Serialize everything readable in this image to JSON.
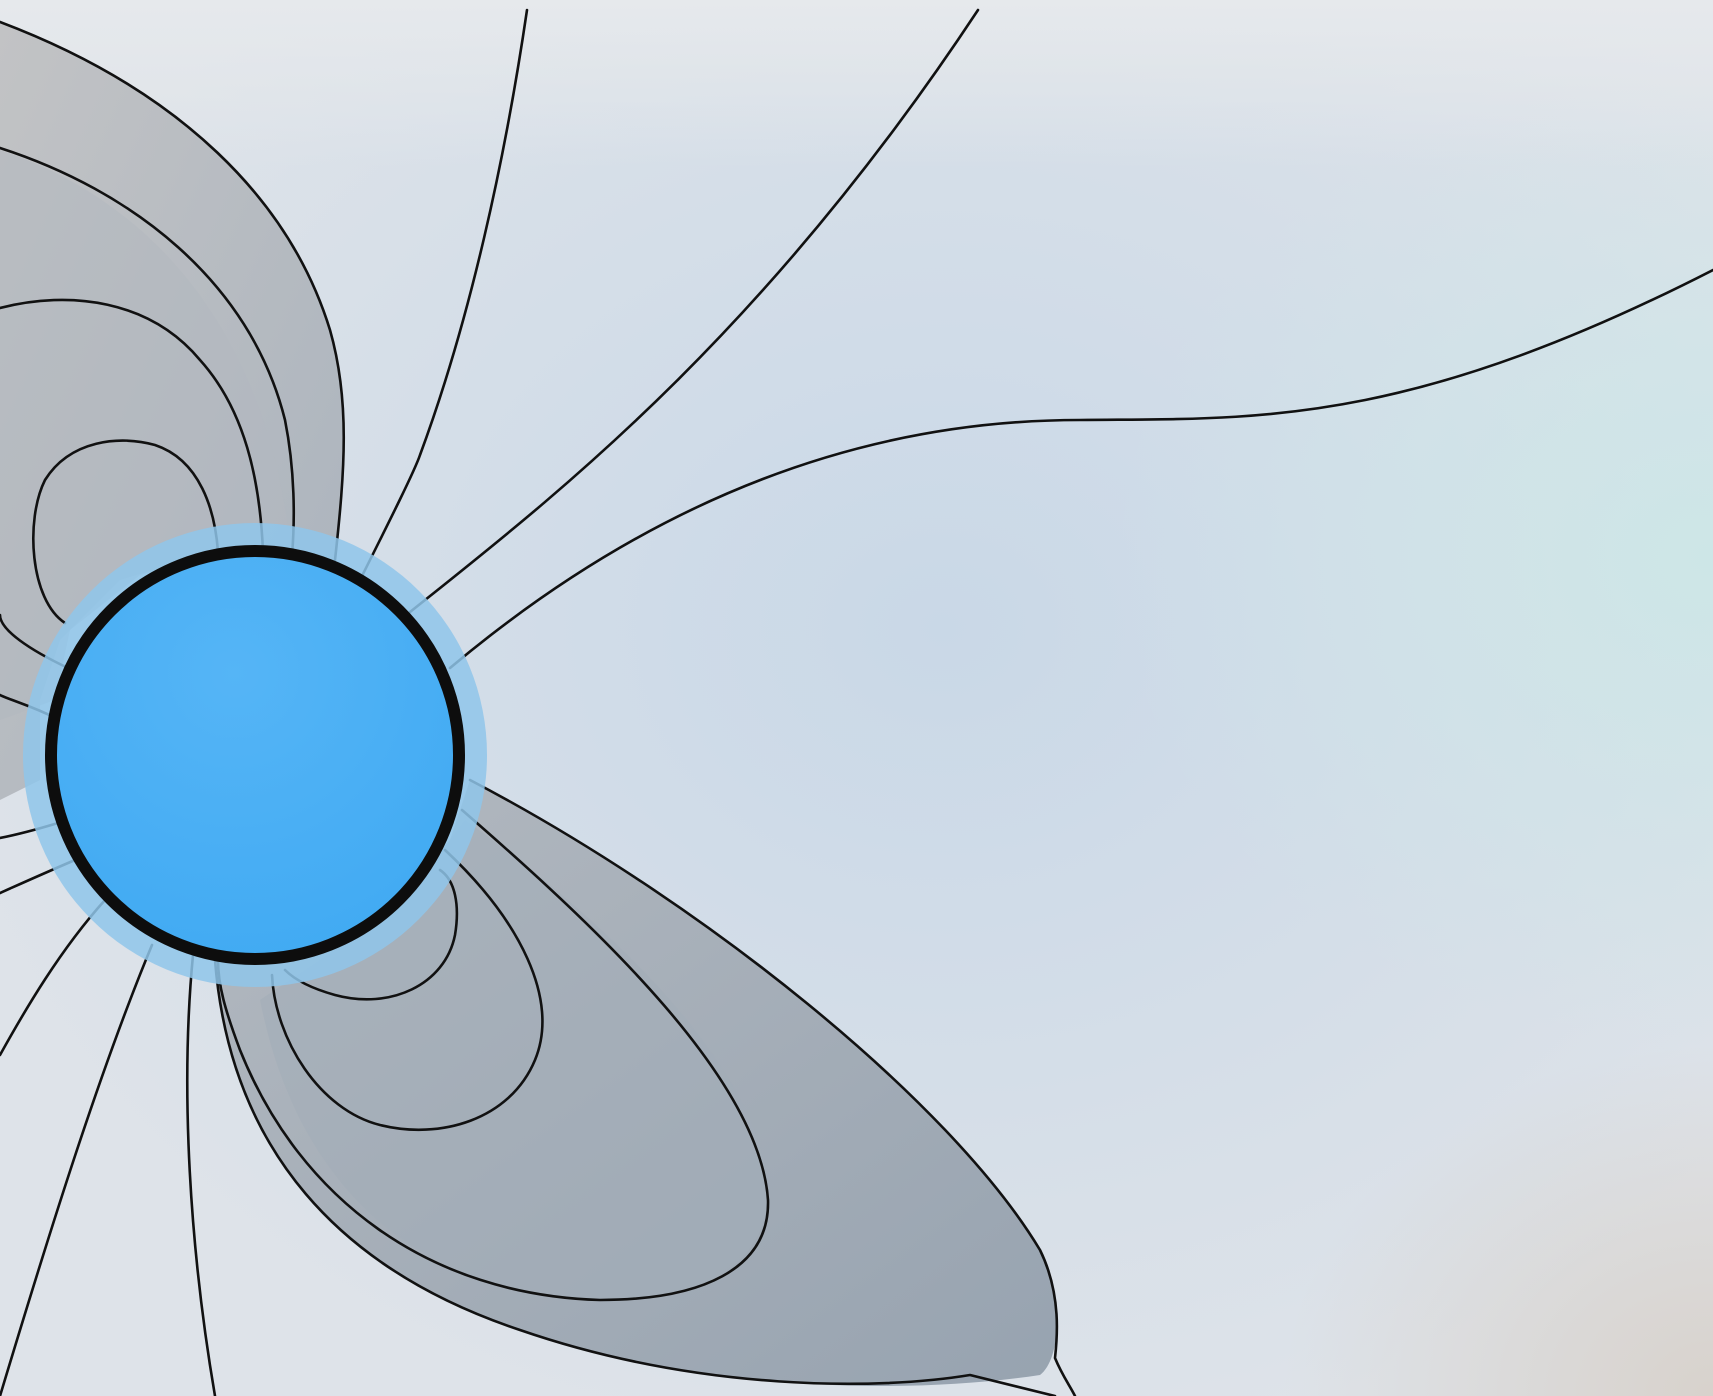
{
  "diagram": {
    "subject": "magnetic-field-lines-around-sphere",
    "colors": {
      "background_light": "#e3e7ec",
      "background_blue": "#c3d6e7",
      "background_teal": "#cfe5e6",
      "background_warm": "#d9d3cf",
      "sphere_fill": "#46adf2",
      "sphere_highlight": "#58b6f6",
      "sphere_halo": "#8fc6ea",
      "sphere_outline": "#0d0d0d",
      "closed_region_light": "#c3c6ca",
      "closed_region_mid": "#a8b2bc",
      "closed_region_dark": "#8f9aa6",
      "field_line": "#111111"
    },
    "labels": []
  }
}
